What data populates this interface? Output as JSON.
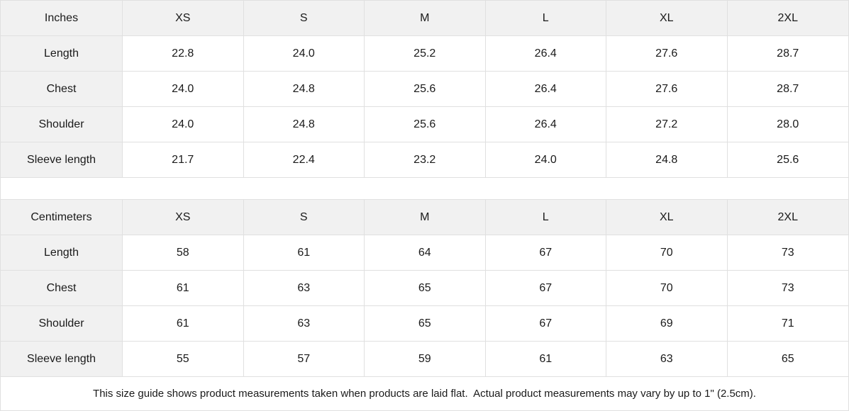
{
  "tables": [
    {
      "unit_label": "Inches",
      "sizes": [
        "XS",
        "S",
        "M",
        "L",
        "XL",
        "2XL"
      ],
      "rows": [
        {
          "label": "Length",
          "values": [
            "22.8",
            "24.0",
            "25.2",
            "26.4",
            "27.6",
            "28.7"
          ]
        },
        {
          "label": "Chest",
          "values": [
            "24.0",
            "24.8",
            "25.6",
            "26.4",
            "27.6",
            "28.7"
          ]
        },
        {
          "label": "Shoulder",
          "values": [
            "24.0",
            "24.8",
            "25.6",
            "26.4",
            "27.2",
            "28.0"
          ]
        },
        {
          "label": "Sleeve length",
          "values": [
            "21.7",
            "22.4",
            "23.2",
            "24.0",
            "24.8",
            "25.6"
          ]
        }
      ]
    },
    {
      "unit_label": "Centimeters",
      "sizes": [
        "XS",
        "S",
        "M",
        "L",
        "XL",
        "2XL"
      ],
      "rows": [
        {
          "label": "Length",
          "values": [
            "58",
            "61",
            "64",
            "67",
            "70",
            "73"
          ]
        },
        {
          "label": "Chest",
          "values": [
            "61",
            "63",
            "65",
            "67",
            "70",
            "73"
          ]
        },
        {
          "label": "Shoulder",
          "values": [
            "61",
            "63",
            "65",
            "67",
            "69",
            "71"
          ]
        },
        {
          "label": "Sleeve length",
          "values": [
            "55",
            "57",
            "59",
            "61",
            "63",
            "65"
          ]
        }
      ]
    }
  ],
  "footer": {
    "note": "This size guide shows product measurements taken when products are laid flat.  Actual product measurements may vary by up to 1\" (2.5cm)."
  },
  "colors": {
    "header_bg": "#f1f1f1",
    "border": "#e0e0e0",
    "text": "#1a1a1a",
    "cell_bg": "#ffffff"
  }
}
